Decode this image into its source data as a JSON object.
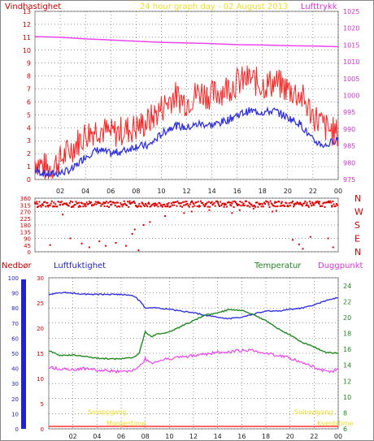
{
  "colors": {
    "wind_gust": "#ff2222",
    "wind_avg": "#3333dd",
    "pressure": "#ee44ee",
    "direction": "#dd0000",
    "rain": "#ff3333",
    "humidity": "#3333dd",
    "temperature": "#228822",
    "dewpoint": "#ee44ee",
    "sun": "#eedd22",
    "grid": "#000000",
    "frame": "#888888"
  },
  "panel1": {
    "title": "24 hour graph day - 02 August 2013",
    "left_label": "Vindhastighet",
    "right_label": "Lufttrykk"
  },
  "panel2": {
    "compass": [
      "N",
      "W",
      "S",
      "E",
      "N"
    ]
  },
  "panel3": {
    "label_rain": "Nedbør",
    "label_humidity": "Luftfuktighet",
    "label_temperature": "Temperatur",
    "label_dewpoint": "Duggpunkt",
    "sunrise_label": "Soloppgang",
    "sunset_label": "Solnedgang",
    "sunrise_time": "Morgentime",
    "sunset_time": "Kveldstime"
  },
  "chart_data": [
    {
      "type": "line",
      "x_ticks": [
        "02",
        "04",
        "06",
        "08",
        "10",
        "12",
        "14",
        "16",
        "18",
        "20",
        "22",
        "00"
      ],
      "y_left_ticks": [
        0,
        1,
        2,
        3,
        4,
        5,
        6,
        7,
        8,
        9,
        10,
        11,
        12,
        13
      ],
      "y_right_ticks": [
        975,
        980,
        985,
        990,
        995,
        1000,
        1005,
        1010,
        1015,
        1020,
        1025
      ],
      "ylim_left": [
        0,
        13
      ],
      "ylim_right": [
        975,
        1025
      ],
      "series": [
        {
          "name": "Vindhastighet",
          "axis": "left",
          "x": [
            0,
            1,
            2,
            3,
            4,
            5,
            6,
            7,
            8,
            9,
            10,
            11,
            12,
            13,
            14,
            15,
            16,
            17,
            18,
            19,
            20,
            21,
            22,
            23,
            24
          ],
          "values": [
            1.5,
            0.8,
            1.5,
            2.5,
            3.5,
            4.0,
            3.5,
            3.8,
            4.0,
            4.5,
            5.5,
            6.5,
            6.0,
            6.8,
            6.5,
            7.0,
            7.5,
            7.8,
            7.3,
            7.5,
            7.0,
            6.5,
            5.0,
            4.0,
            3.5
          ]
        },
        {
          "name": "Vindhastighet middel",
          "axis": "left",
          "x": [
            0,
            1,
            2,
            3,
            4,
            5,
            6,
            7,
            8,
            9,
            10,
            11,
            12,
            13,
            14,
            15,
            16,
            17,
            18,
            19,
            20,
            21,
            22,
            23,
            24
          ],
          "values": [
            0.7,
            0.4,
            0.5,
            0.8,
            1.8,
            2.3,
            2.0,
            2.2,
            2.6,
            2.6,
            3.5,
            4.2,
            4.0,
            4.3,
            4.2,
            4.5,
            5.0,
            5.3,
            5.2,
            5.3,
            4.8,
            4.3,
            3.0,
            2.6,
            3.2
          ]
        },
        {
          "name": "Lufttrykk",
          "axis": "right",
          "x": [
            0,
            2,
            4,
            6,
            8,
            10,
            12,
            14,
            16,
            18,
            20,
            22,
            24
          ],
          "values": [
            1017.5,
            1017.3,
            1016.8,
            1016.5,
            1016.1,
            1015.8,
            1015.6,
            1015.4,
            1015.1,
            1015.0,
            1014.8,
            1014.7,
            1014.5
          ]
        }
      ]
    },
    {
      "type": "scatter",
      "name": "Vindretning",
      "x_ticks": [
        "02",
        "04",
        "06",
        "08",
        "10",
        "12",
        "14",
        "16",
        "18",
        "20",
        "22",
        "00"
      ],
      "y_ticks": [
        0,
        45,
        90,
        135,
        180,
        225,
        270,
        315,
        360
      ],
      "ylim": [
        0,
        360
      ],
      "x": [
        0.2,
        0.6,
        1.0,
        1.5,
        2.0,
        2.5,
        3.0,
        3.5,
        4.0,
        4.5,
        5.0,
        5.5,
        6.0,
        6.5,
        7.0,
        7.5,
        8.0,
        8.5,
        9.0,
        9.5,
        10.0,
        10.5,
        11.0,
        11.5,
        12.0,
        12.5,
        13.0,
        13.5,
        14.0,
        14.5,
        15.0,
        15.5,
        16.0,
        16.5,
        17.0,
        17.5,
        18.0,
        18.5,
        19.0,
        19.5,
        20.0,
        20.5,
        21.0,
        21.5,
        22.0,
        22.5,
        23.0,
        23.5,
        1.2,
        2.8,
        4.3,
        5.1,
        6.4,
        7.2,
        7.7,
        8.2,
        9.1,
        10.3,
        12.4,
        13.8,
        15.6,
        17.3,
        19.1,
        20.4,
        20.9,
        21.2,
        23.2,
        23.6,
        2.2,
        5.6,
        8.6,
        11.8,
        16.2,
        18.8,
        21.8,
        3.7,
        7.9
      ],
      "values": [
        300,
        320,
        310,
        330,
        315,
        325,
        305,
        330,
        320,
        310,
        335,
        325,
        315,
        330,
        320,
        340,
        310,
        325,
        330,
        320,
        315,
        305,
        330,
        325,
        320,
        330,
        310,
        320,
        335,
        325,
        315,
        330,
        320,
        310,
        325,
        330,
        320,
        315,
        335,
        325,
        310,
        320,
        330,
        315,
        325,
        320,
        330,
        310,
        45,
        90,
        30,
        70,
        60,
        40,
        120,
        10,
        200,
        240,
        270,
        280,
        260,
        290,
        275,
        80,
        50,
        20,
        90,
        30,
        250,
        40,
        180,
        260,
        280,
        270,
        100,
        55,
        150
      ]
    },
    {
      "type": "line",
      "x_ticks": [
        "02",
        "04",
        "06",
        "08",
        "10",
        "12",
        "14",
        "16",
        "18",
        "20",
        "22",
        "00"
      ],
      "y_rain_ticks": [
        0,
        10,
        20,
        30,
        40,
        50,
        60,
        70,
        80,
        90,
        100
      ],
      "y_humidity_ticks": [
        0,
        5,
        10,
        15,
        20,
        25,
        30
      ],
      "y_temp_ticks": [
        6,
        8,
        10,
        12,
        14,
        16,
        18,
        20,
        22,
        24
      ],
      "ylim_humidity": [
        0,
        100
      ],
      "ylim_temp": [
        6,
        25
      ],
      "series": [
        {
          "name": "Luftfuktighet",
          "axis": "rain",
          "x": [
            0,
            1,
            2,
            3,
            4,
            5,
            6,
            7,
            7.5,
            8,
            8.5,
            9,
            10,
            11,
            12,
            13,
            14,
            14.5,
            15,
            16,
            17,
            18,
            19,
            20,
            21,
            22,
            23,
            24
          ],
          "values": [
            89,
            90,
            90,
            89,
            89,
            89,
            89,
            88,
            85,
            80,
            80,
            80,
            79,
            78,
            77,
            75,
            74,
            73,
            73,
            74,
            76,
            78,
            78,
            79,
            80,
            82,
            85,
            87
          ]
        },
        {
          "name": "Temperatur",
          "axis": "temp",
          "x": [
            0,
            1,
            2,
            3,
            4,
            5,
            6,
            7,
            7.5,
            8,
            8.5,
            9,
            10,
            11,
            12,
            13,
            14,
            15,
            16,
            17,
            18,
            19,
            20,
            21,
            22,
            23,
            24
          ],
          "values": [
            15.8,
            15.2,
            15.3,
            15.1,
            14.9,
            14.8,
            14.8,
            15.0,
            15.5,
            18.2,
            17.6,
            17.9,
            18.2,
            18.9,
            19.6,
            20.3,
            20.6,
            21.0,
            20.9,
            20.3,
            19.6,
            18.6,
            17.8,
            16.9,
            16.3,
            15.6,
            15.5
          ]
        },
        {
          "name": "Duggpunkt",
          "axis": "temp",
          "x": [
            0,
            1,
            2,
            3,
            4,
            5,
            6,
            7,
            7.5,
            8,
            8.5,
            9,
            10,
            11,
            12,
            13,
            14,
            15,
            16,
            17,
            18,
            19,
            20,
            21,
            22,
            23,
            24
          ],
          "values": [
            13.7,
            13.5,
            13.5,
            13.6,
            13.4,
            13.3,
            13.2,
            13.4,
            13.8,
            14.8,
            14.2,
            14.5,
            14.8,
            15.0,
            15.2,
            15.4,
            15.6,
            15.7,
            15.9,
            15.8,
            15.5,
            15.2,
            14.9,
            14.3,
            13.8,
            13.2,
            13.4
          ]
        }
      ]
    }
  ]
}
